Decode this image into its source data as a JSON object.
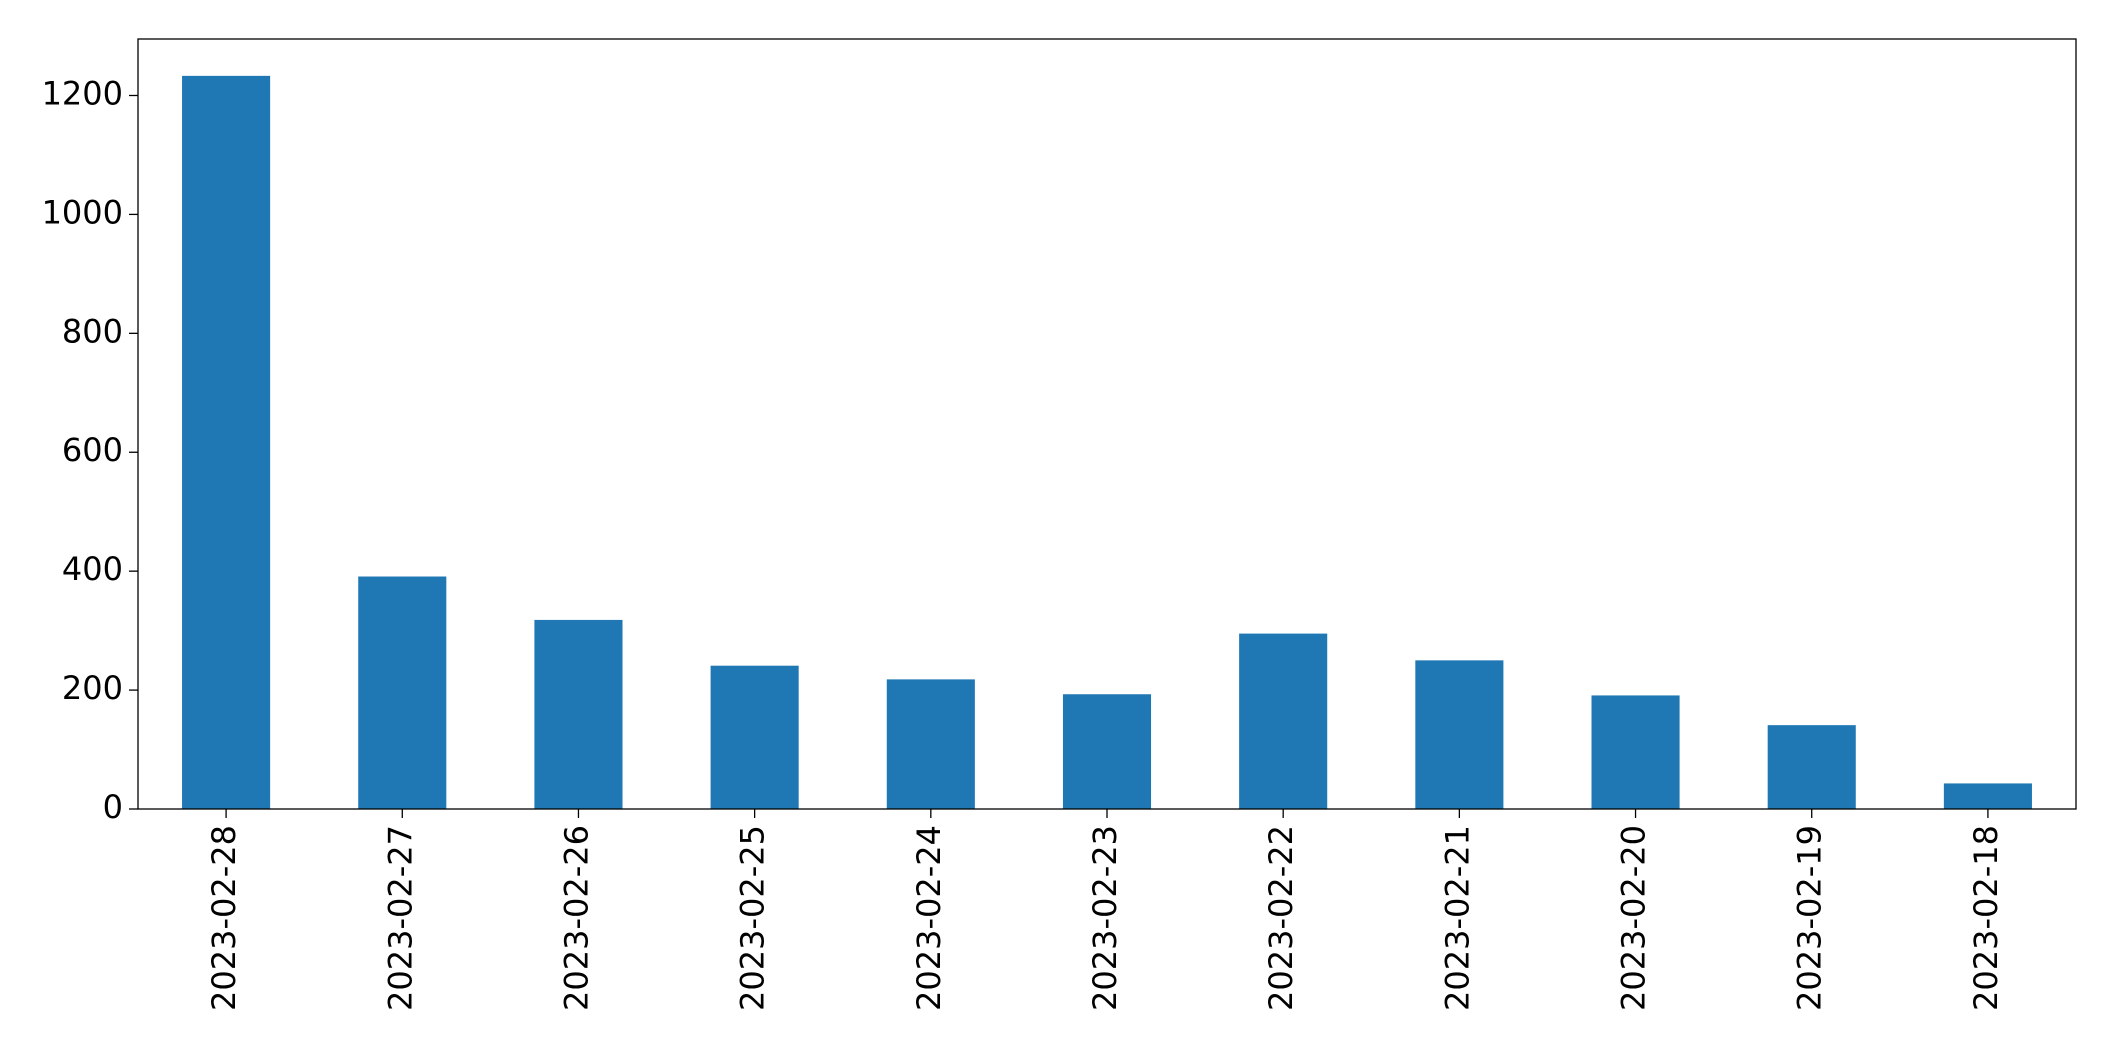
{
  "chart_data": {
    "type": "bar",
    "categories": [
      "2023-02-28",
      "2023-02-27",
      "2023-02-26",
      "2023-02-25",
      "2023-02-24",
      "2023-02-23",
      "2023-02-22",
      "2023-02-21",
      "2023-02-20",
      "2023-02-19",
      "2023-02-18"
    ],
    "values": [
      1233,
      391,
      318,
      241,
      218,
      193,
      295,
      250,
      191,
      141,
      43
    ],
    "color": "#1f77b4",
    "ylim": [
      0,
      1295
    ],
    "yticks": [
      0,
      200,
      400,
      600,
      800,
      1000,
      1200
    ],
    "grid": false
  }
}
